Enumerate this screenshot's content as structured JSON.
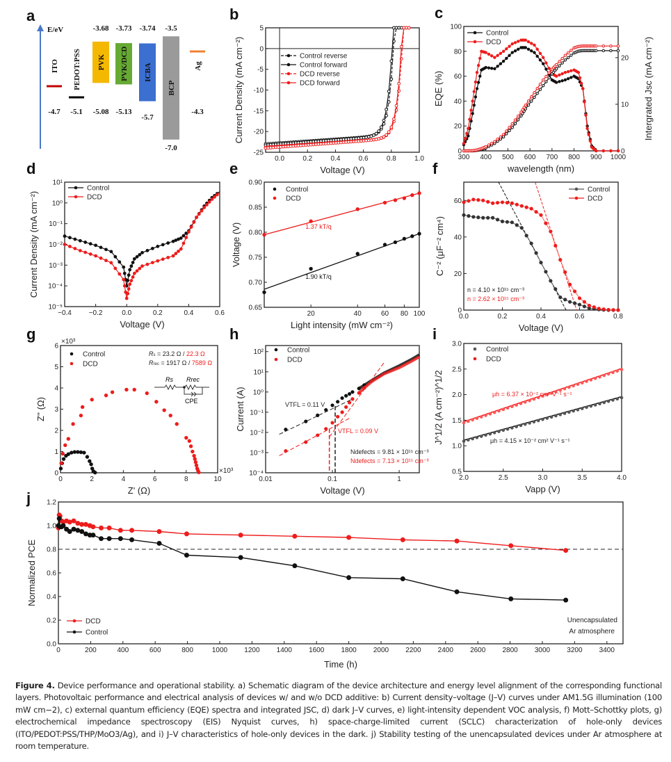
{
  "figure": {
    "caption_title": "Figure 4.",
    "caption_text": "Device performance and operational stability. a) Schematic diagram of the device architecture and energy level alignment of the corresponding functional layers. Photovoltaic performance and electrical analysis of devices w/ and w/o DCD additive: b) Current density–voltage (J–V) curves under AM1.5G illumination (100 mW cm−2), c) external quantum efficiency (EQE) spectra and integrated JSC, d) dark J–V curves, e) light-intensity dependent VOC analysis, f) Mott–Schottky plots, g) electrochemical impedance spectroscopy (EIS) Nyquist curves, h) space-charge-limited current (SCLC) characterization of hole-only devices (ITO/PEDOT:PSS/THP/MoO3/Ag), and i) J–V characteristics of hole-only devices in the dark. j) Stability testing of the unencapsulated devices under Ar atmosphere at room temperature."
  },
  "colors": {
    "control": "#111111",
    "dcd": "#ee1c1c"
  },
  "chart_data": [
    {
      "panel": "a",
      "type": "diagram",
      "title": "Energy level diagram",
      "ylabel": "E/eV",
      "layers": [
        {
          "name": "ITO",
          "top": null,
          "bottom": "-4.7",
          "color": "#c00000"
        },
        {
          "name": "PEDOT:PSS",
          "top": null,
          "bottom": "-5.1",
          "color": "#000000"
        },
        {
          "name": "PVK",
          "top": "-3.68",
          "bottom": "-5.08",
          "color": "#f5b800"
        },
        {
          "name": "PVK/DCD",
          "top": "-3.73",
          "bottom": "-5.13",
          "color": "#66aa33"
        },
        {
          "name": "ICBA",
          "top": "-3.74",
          "bottom": "-5.7",
          "color": "#3b6fd0"
        },
        {
          "name": "BCP",
          "top": "-3.5",
          "bottom": "-7.0",
          "color": "#9a9a9a"
        },
        {
          "name": "Ag",
          "top": null,
          "bottom": "-4.3",
          "color": "#f08030"
        }
      ]
    },
    {
      "panel": "b",
      "type": "line",
      "xlabel": "Voltage (V)",
      "ylabel": "Current Density (mA cm⁻²)",
      "xlim": [
        -0.1,
        1.0
      ],
      "ylim": [
        -25,
        5
      ],
      "xticks": [
        "0.0",
        "0.2",
        "0.4",
        "0.6",
        "0.8",
        "1.0"
      ],
      "yticks": [
        "5",
        "0",
        "-5",
        "-10",
        "-15",
        "-20",
        "-25"
      ],
      "legend": [
        "Control reverse",
        "Control forward",
        "DCD reverse",
        "DCD forward"
      ],
      "series": [
        {
          "name": "Control reverse",
          "jsc": -23.0,
          "voc": 0.82,
          "style": "dashed"
        },
        {
          "name": "Control forward",
          "jsc": -23.3,
          "voc": 0.81,
          "style": "solid"
        },
        {
          "name": "DCD reverse",
          "jsc": -23.8,
          "voc": 0.88,
          "style": "dashed"
        },
        {
          "name": "DCD forward",
          "jsc": -24.0,
          "voc": 0.875,
          "style": "solid"
        }
      ]
    },
    {
      "panel": "c",
      "type": "line",
      "xlabel": "wavelength (nm)",
      "ylabel": "EQE (%)",
      "ylabel_right": "Intergrated Jsc (mA cm⁻²)",
      "xlim": [
        300,
        1000
      ],
      "ylim": [
        0,
        100
      ],
      "ylim_right": [
        0,
        26.7
      ],
      "xticks": [
        "300",
        "400",
        "500",
        "600",
        "700",
        "800",
        "900",
        "1000"
      ],
      "yticks": [
        "0",
        "20",
        "40",
        "60",
        "80",
        "100"
      ],
      "yticks_right": [
        "0",
        "10",
        "20"
      ],
      "legend": [
        "Control",
        "DCD"
      ],
      "x": [
        300,
        320,
        340,
        360,
        380,
        400,
        440,
        480,
        520,
        560,
        580,
        620,
        660,
        700,
        720,
        760,
        800,
        820,
        840,
        860,
        880,
        900,
        1000
      ],
      "series": [
        {
          "name": "Control EQE",
          "values": [
            5,
            12,
            30,
            50,
            65,
            67,
            66,
            72,
            79,
            83,
            83,
            79,
            70,
            57,
            55,
            57,
            60,
            58,
            50,
            20,
            4,
            0,
            0
          ]
        },
        {
          "name": "DCD EQE",
          "values": [
            6,
            18,
            40,
            63,
            80,
            79,
            75,
            80,
            86,
            89,
            89,
            85,
            75,
            62,
            60,
            63,
            65,
            63,
            50,
            18,
            3,
            0,
            0
          ]
        },
        {
          "name": "Control Jsc",
          "values": [
            0,
            0,
            0,
            0.1,
            0.3,
            0.6,
            1.6,
            3,
            5,
            7.5,
            9,
            11.5,
            14,
            16.5,
            17.6,
            19.5,
            21,
            21.4,
            21.5,
            21.5,
            21.5,
            21.5,
            21.5
          ]
        },
        {
          "name": "DCD Jsc",
          "values": [
            0,
            0,
            0.05,
            0.2,
            0.5,
            0.9,
            2,
            3.5,
            5.8,
            8.3,
            9.8,
            12.5,
            15.2,
            17.5,
            18.5,
            20.5,
            22.1,
            22.4,
            22.5,
            22.5,
            22.5,
            22.5,
            22.5
          ]
        }
      ]
    },
    {
      "panel": "d",
      "type": "line",
      "xlabel": "Voltage (V)",
      "ylabel": "Current Density (mA cm⁻²)",
      "yscale": "log",
      "xlim": [
        -0.4,
        0.6
      ],
      "ylim": [
        1e-05,
        10
      ],
      "xticks": [
        "−0.4",
        "−0.2",
        "0.0",
        "0.2",
        "0.4",
        "0.6"
      ],
      "yticks": [
        "10⁻⁵",
        "10⁻⁴",
        "10⁻³",
        "10⁻²",
        "10⁻¹",
        "10⁰",
        "10¹"
      ],
      "legend": [
        "Control",
        "DCD"
      ],
      "x": [
        -0.4,
        -0.3,
        -0.2,
        -0.1,
        -0.02,
        0,
        0.02,
        0.05,
        0.1,
        0.2,
        0.3,
        0.35,
        0.4,
        0.45,
        0.5,
        0.55,
        0.6
      ],
      "series": [
        {
          "name": "Control",
          "values": [
            0.025,
            0.015,
            0.009,
            0.0045,
            0.0008,
            0.0001,
            0.0006,
            0.002,
            0.004,
            0.008,
            0.014,
            0.02,
            0.045,
            0.2,
            0.7,
            1.8,
            3.5
          ]
        },
        {
          "name": "DCD",
          "values": [
            0.01,
            0.005,
            0.0028,
            0.0013,
            0.0002,
            2.5e-05,
            0.00012,
            0.0004,
            0.0009,
            0.0016,
            0.0028,
            0.006,
            0.04,
            0.2,
            0.6,
            1.5,
            3.2
          ]
        }
      ]
    },
    {
      "panel": "e",
      "type": "scatter",
      "xlabel": "Light intensity (mW cm⁻²)",
      "ylabel": "Voltage (V)",
      "xscale": "log",
      "xlim": [
        10,
        100
      ],
      "ylim": [
        0.65,
        0.9
      ],
      "xticks": [
        "20",
        "40",
        "60",
        "80",
        "100"
      ],
      "yticks": [
        "0.65",
        "0.70",
        "0.75",
        "0.80",
        "0.85",
        "0.90"
      ],
      "legend": [
        "Control",
        "DCD"
      ],
      "x": [
        10,
        20,
        40,
        60,
        70,
        80,
        90,
        100
      ],
      "series": [
        {
          "name": "Control",
          "values": [
            0.68,
            0.727,
            0.757,
            0.775,
            0.78,
            0.787,
            0.792,
            0.797
          ],
          "fit": [
            0.686,
            0.797
          ],
          "label": "1.90 kT/q"
        },
        {
          "name": "DCD",
          "values": [
            0.795,
            0.822,
            0.846,
            0.859,
            0.864,
            0.868,
            0.874,
            0.878
          ],
          "fit": [
            0.795,
            0.878
          ],
          "label": "1.37 kT/q"
        }
      ]
    },
    {
      "panel": "f",
      "type": "line",
      "xlabel": "Voltage (V)",
      "ylabel": "C⁻² (μF⁻² cm⁴)",
      "xlim": [
        0,
        0.8
      ],
      "ylim": [
        0,
        70
      ],
      "xticks": [
        "0.0",
        "0.2",
        "0.4",
        "0.6",
        "0.8"
      ],
      "yticks": [
        "0",
        "20",
        "40",
        "60"
      ],
      "legend": [
        "Control",
        "DCD"
      ],
      "annotations": [
        "n = 4.10 × 10¹⁵ cm⁻³",
        "n = 2.62 × 10¹⁵ cm⁻³"
      ],
      "x": [
        0,
        0.05,
        0.1,
        0.15,
        0.2,
        0.25,
        0.3,
        0.35,
        0.4,
        0.45,
        0.5,
        0.55,
        0.6,
        0.65,
        0.7,
        0.75,
        0.8
      ],
      "series": [
        {
          "name": "Control",
          "values": [
            52,
            51,
            50.5,
            50.5,
            48.5,
            48,
            45,
            36.5,
            26,
            16,
            7,
            4.5,
            3,
            1,
            0.3,
            0,
            0
          ]
        },
        {
          "name": "DCD",
          "values": [
            59,
            60.5,
            60,
            58.5,
            59,
            58.5,
            57,
            55.5,
            52,
            43,
            27.5,
            14,
            6.5,
            2.5,
            0.8,
            0.2,
            0
          ]
        }
      ],
      "fits": [
        {
          "name": "Control",
          "x": [
            0.18,
            0.53
          ],
          "y": [
            70,
            0
          ]
        },
        {
          "name": "DCD",
          "x": [
            0.37,
            0.585
          ],
          "y": [
            70,
            0
          ]
        }
      ]
    },
    {
      "panel": "g",
      "type": "scatter",
      "xlabel": "Z' (Ω)",
      "ylabel": "Z'' (Ω)",
      "xlim": [
        0,
        10
      ],
      "ylim": [
        0,
        6
      ],
      "axis_multiplier": "×10³",
      "xticks": [
        "0",
        "2",
        "4",
        "6",
        "8",
        "10"
      ],
      "yticks": [
        "0",
        "1",
        "2",
        "3",
        "4",
        "5",
        "6"
      ],
      "legend": [
        "Control",
        "DCD"
      ],
      "annotations": {
        "rs_label": "Rs",
        "rs_values": "= 23.2 Ω / ",
        "rs_dcd": "22.3 Ω",
        "rrec_label": "Rrec",
        "rrec_values": "= 1917 Ω / ",
        "rrec_dcd": "7589 Ω",
        "circuit": [
          "Rs",
          "Rrec",
          "CPE"
        ]
      },
      "series": [
        {
          "name": "Control",
          "x": [
            0.02,
            0.1,
            0.2,
            0.35,
            0.5,
            0.7,
            0.9,
            1.1,
            1.3,
            1.5,
            1.7,
            1.85,
            1.95,
            2.02,
            2.1,
            2.2
          ],
          "values": [
            0.2,
            0.45,
            0.65,
            0.8,
            0.88,
            0.95,
            0.98,
            0.98,
            0.97,
            0.95,
            0.75,
            0.55,
            0.4,
            0.2,
            0.07,
            0.01
          ]
        },
        {
          "name": "DCD",
          "x": [
            0.05,
            0.15,
            0.3,
            0.5,
            0.8,
            1.3,
            1.4,
            2.0,
            2.9,
            3.3,
            4.2,
            4.7,
            5.5,
            6.1,
            6.6,
            7.0,
            7.4,
            8.0,
            8.2,
            8.3,
            8.4,
            8.5,
            8.55,
            8.6,
            8.65,
            8.7,
            8.75,
            8.8
          ],
          "values": [
            0.45,
            0.9,
            1.3,
            1.6,
            2.3,
            2.7,
            3.1,
            3.45,
            3.65,
            3.8,
            3.92,
            3.92,
            3.75,
            3.35,
            2.95,
            2.7,
            2.3,
            1.65,
            1.5,
            1.25,
            1.0,
            0.8,
            0.65,
            0.5,
            0.35,
            0.2,
            0.1,
            0.02
          ]
        }
      ]
    },
    {
      "panel": "h",
      "type": "scatter",
      "xlabel": "Voltage (V)",
      "ylabel": "Current (A)",
      "xscale": "log",
      "yscale": "log",
      "xlim": [
        0.01,
        2
      ],
      "ylim": [
        0.0001,
        200
      ],
      "xticks": [
        "0.01",
        "0.1",
        "1"
      ],
      "yticks": [
        "10⁻⁴",
        "10⁻³",
        "10⁻²",
        "10⁻¹",
        "10⁰",
        "10¹",
        "10²"
      ],
      "legend": [
        "Control",
        "DCD"
      ],
      "annotations": {
        "vtfl_control": "VTFL = 0.11 V",
        "vtfl_dcd": "VTFL = 0.09 V",
        "ndef_control": "Ndefects = 9.81 × 10¹⁵ cm⁻³",
        "ndef_dcd": "Ndefects = 7.13 × 10¹⁵ cm⁻³"
      },
      "x": [
        0.02,
        0.04,
        0.06,
        0.08,
        0.1,
        0.12,
        0.14,
        0.16,
        0.18,
        0.2,
        0.25,
        0.3,
        0.4,
        0.6,
        1,
        1.5,
        2
      ],
      "series": [
        {
          "name": "Control",
          "values": [
            0.014,
            0.035,
            0.07,
            0.13,
            0.22,
            0.33,
            0.5,
            0.65,
            0.8,
            1.0,
            1.5,
            2.2,
            4,
            9,
            20,
            40,
            70
          ]
        },
        {
          "name": "DCD",
          "values": [
            0.0012,
            0.0033,
            0.0072,
            0.015,
            0.03,
            0.06,
            0.1,
            0.18,
            0.3,
            0.45,
            0.9,
            1.6,
            3.5,
            8,
            16,
            32,
            55
          ]
        }
      ]
    },
    {
      "panel": "i",
      "type": "scatter",
      "xlabel": "Vapp (V)",
      "ylabel": "J^1/2 (A cm⁻²)^1/2",
      "xlim": [
        2.0,
        4.0
      ],
      "ylim": [
        0.5,
        3.0
      ],
      "xticks": [
        "2.0",
        "2.5",
        "3.0",
        "3.5",
        "4.0"
      ],
      "yticks": [
        "0.5",
        "1.0",
        "1.5",
        "2.0",
        "2.5",
        "3.0"
      ],
      "legend": [
        "Control",
        "DCD"
      ],
      "annotations": {
        "mu_dcd": "μh = 6.37 × 10⁻² cm² V⁻¹ s⁻¹",
        "mu_control": "μh = 4.15 × 10⁻² cm² V⁻¹ s⁻¹"
      },
      "series": [
        {
          "name": "Control",
          "start": [
            2.0,
            1.11
          ],
          "end": [
            4.0,
            1.96
          ]
        },
        {
          "name": "DCD",
          "start": [
            2.0,
            1.47
          ],
          "end": [
            4.0,
            2.51
          ]
        }
      ]
    },
    {
      "panel": "j",
      "type": "line",
      "xlabel": "Time (h)",
      "ylabel": "Normalized PCE",
      "xlim": [
        0,
        3500
      ],
      "ylim": [
        0,
        1.2
      ],
      "xticks": [
        "0",
        "200",
        "400",
        "600",
        "800",
        "1000",
        "1200",
        "1400",
        "1600",
        "1800",
        "2000",
        "2200",
        "2400",
        "2600",
        "2800",
        "3000",
        "3200",
        "3400"
      ],
      "yticks": [
        "0.0",
        "0.2",
        "0.4",
        "0.6",
        "0.8",
        "1.0",
        "1.2"
      ],
      "legend": [
        "DCD",
        "Control"
      ],
      "reference_line": 0.8,
      "annotation": [
        "Unencapsulated",
        "Ar atmosphere"
      ],
      "series": [
        {
          "name": "DCD",
          "x": [
            0,
            5,
            10,
            20,
            30,
            50,
            70,
            95,
            120,
            145,
            170,
            195,
            215,
            265,
            315,
            385,
            455,
            625,
            795,
            1130,
            1465,
            1800,
            2135,
            2470,
            2805,
            3145
          ],
          "values": [
            0.98,
            1.09,
            1.08,
            1.04,
            1.03,
            1.04,
            1.03,
            1.04,
            1.02,
            1.01,
            1.01,
            1.0,
            0.99,
            0.98,
            0.98,
            0.96,
            0.96,
            0.95,
            0.93,
            0.92,
            0.91,
            0.9,
            0.88,
            0.87,
            0.83,
            0.79
          ]
        },
        {
          "name": "Control",
          "x": [
            0,
            5,
            10,
            20,
            30,
            50,
            70,
            95,
            120,
            145,
            170,
            195,
            215,
            265,
            315,
            385,
            455,
            625,
            795,
            1130,
            1465,
            1800,
            2135,
            2470,
            2805,
            3145
          ],
          "values": [
            1.0,
            1.06,
            0.99,
            0.99,
            1.0,
            0.97,
            0.95,
            0.97,
            0.96,
            0.95,
            0.93,
            0.92,
            0.92,
            0.89,
            0.89,
            0.89,
            0.88,
            0.85,
            0.75,
            0.73,
            0.66,
            0.56,
            0.55,
            0.44,
            0.38,
            0.37
          ]
        }
      ]
    }
  ]
}
